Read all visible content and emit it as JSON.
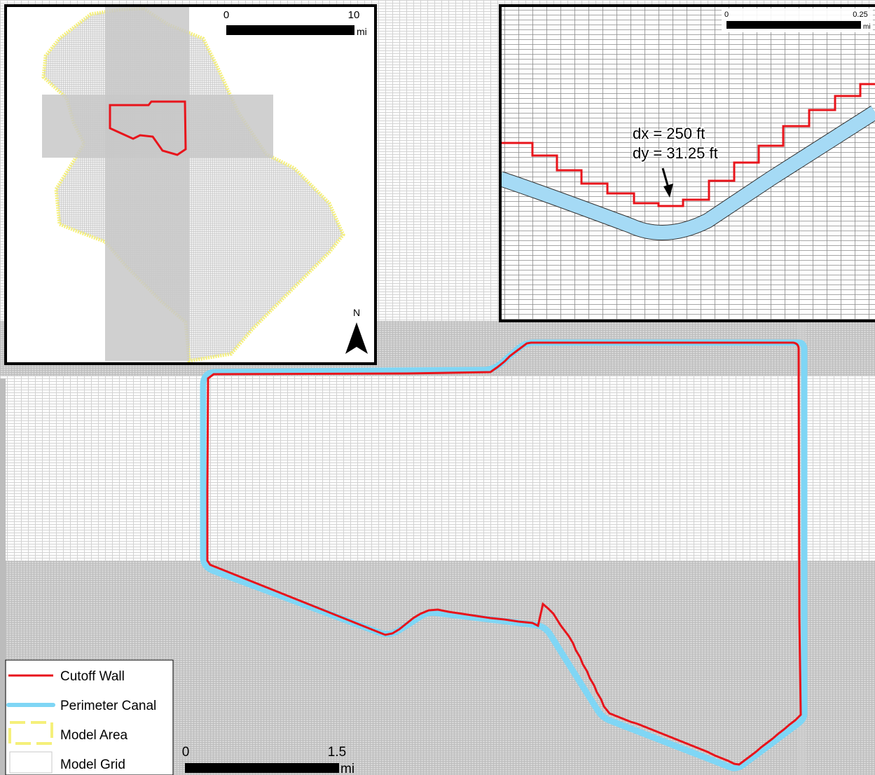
{
  "main_map": {
    "scale_bar": {
      "start": "0",
      "end": "1.5",
      "unit": "mi"
    }
  },
  "inset_overview": {
    "scale_bar": {
      "start": "0",
      "end": "10",
      "unit": "mi"
    },
    "north_arrow": {
      "label": "N",
      "icon": "north-arrow-icon"
    }
  },
  "inset_detail": {
    "scale_bar": {
      "start": "0",
      "end": "0.25",
      "unit": "mi"
    },
    "annotation": {
      "dx": "dx = 250 ft",
      "dy": "dy = 31.25 ft"
    }
  },
  "legend": {
    "items": [
      {
        "label": "Cutoff Wall",
        "color": "#e8141b",
        "icon": "red-line-swatch-icon"
      },
      {
        "label": "Perimeter Canal",
        "color": "#7fd6f5",
        "icon": "blue-line-swatch-icon"
      },
      {
        "label": "Model Area",
        "color": "#f5f07a",
        "icon": "yellow-dashed-box-icon"
      },
      {
        "label": "Model Grid",
        "color": "#c8c8c8",
        "icon": "grey-box-swatch-icon"
      }
    ]
  },
  "colors": {
    "cutoff_wall": "#e8141b",
    "perimeter_canal": "#7fd6f5",
    "model_area": "#f5f07a",
    "model_grid": "#c8c8c8"
  }
}
